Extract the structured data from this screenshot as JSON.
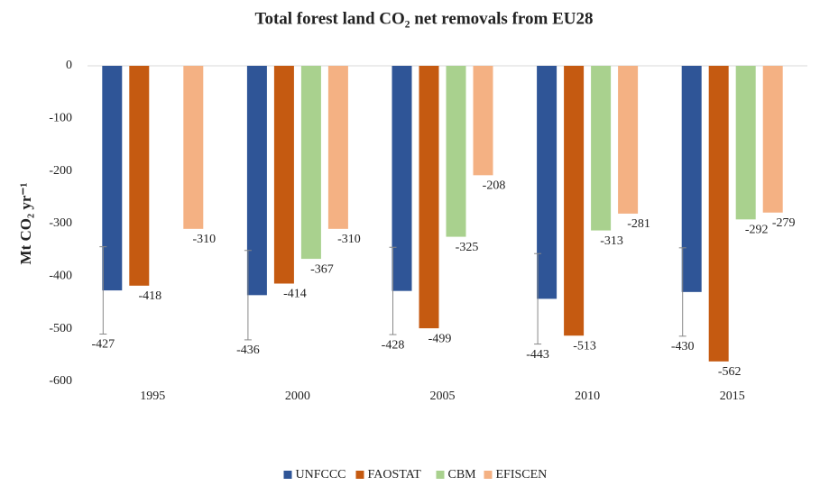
{
  "chart_data": {
    "type": "bar",
    "title": "Total forest land CO₂ net removals from EU28",
    "y_label": "Mt CO₂ yr⁻¹",
    "categories": [
      "1995",
      "2000",
      "2005",
      "2010",
      "2015"
    ],
    "series": [
      {
        "name": "UNFCCC",
        "color": "#2f5597",
        "values": [
          -427,
          -436,
          -428,
          -443,
          -430
        ],
        "errors": [
          83,
          85,
          83,
          86,
          84
        ]
      },
      {
        "name": "FAOSTAT",
        "color": "#c55a11",
        "values": [
          -418,
          -414,
          -499,
          -513,
          -562
        ]
      },
      {
        "name": "CBM",
        "color": "#a9d18e",
        "values": [
          null,
          -367,
          -325,
          -313,
          -292
        ]
      },
      {
        "name": "EFISCEN",
        "color": "#f4b183",
        "values": [
          -310,
          -310,
          -208,
          -281,
          -279
        ]
      }
    ],
    "ylim": [
      -600,
      0
    ],
    "yticks": [
      0,
      -100,
      -200,
      -300,
      -400,
      -500,
      -600
    ],
    "grid": false,
    "legend": "bottom"
  }
}
